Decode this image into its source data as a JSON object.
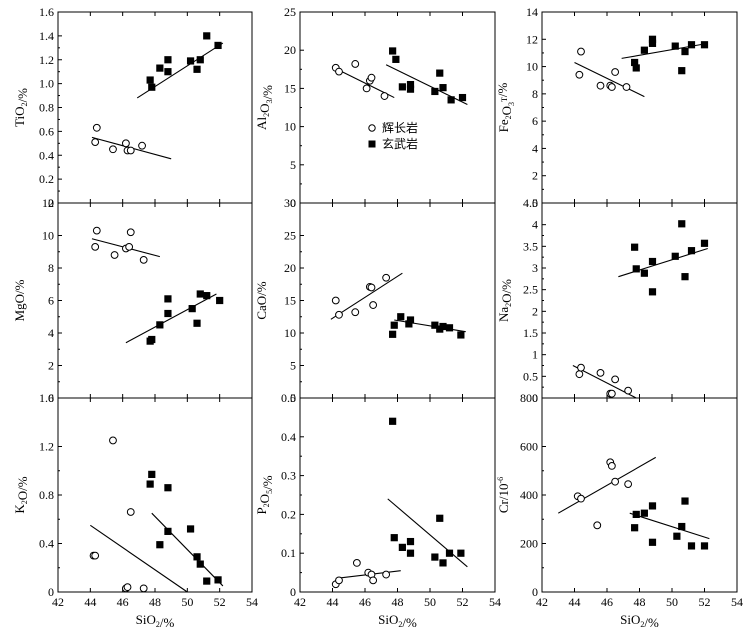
{
  "chart_data": [
    {
      "type": "scatter",
      "ylabel": "TiO2/%",
      "xlabel": "",
      "xlim": [
        42,
        54
      ],
      "ylim": [
        0,
        1.6
      ],
      "x_ticks": [
        "42",
        "44",
        "46",
        "48",
        "50",
        "52",
        "54"
      ],
      "y_ticks": [
        "0",
        "0.2",
        "0.4",
        "0.6",
        "0.8",
        "1.0",
        "1.2",
        "1.4",
        "1.6"
      ],
      "series": [
        {
          "name": "辉长岩",
          "marker": "open-circle",
          "x": [
            44.3,
            44.4,
            45.4,
            46.2,
            46.3,
            46.5,
            47.2
          ],
          "y": [
            0.51,
            0.63,
            0.45,
            0.5,
            0.44,
            0.44,
            0.48
          ]
        },
        {
          "name": "玄武岩",
          "marker": "filled-square",
          "x": [
            47.7,
            47.8,
            48.3,
            48.8,
            48.8,
            50.2,
            50.6,
            50.8,
            51.2,
            51.9
          ],
          "y": [
            1.03,
            0.97,
            1.13,
            1.1,
            1.2,
            1.19,
            1.12,
            1.2,
            1.4,
            1.32
          ]
        }
      ],
      "trendlines": [
        {
          "x": [
            44.1,
            49.0
          ],
          "y": [
            0.55,
            0.37
          ]
        },
        {
          "x": [
            46.9,
            52.2
          ],
          "y": [
            0.88,
            1.34
          ]
        }
      ]
    },
    {
      "type": "scatter",
      "ylabel": "Al2O3/%",
      "xlabel": "",
      "xlim": [
        42,
        54
      ],
      "ylim": [
        0,
        25
      ],
      "x_ticks": [
        "42",
        "44",
        "46",
        "48",
        "50",
        "52",
        "54"
      ],
      "y_ticks": [
        "0",
        "5",
        "10",
        "15",
        "20",
        "25"
      ],
      "series": [
        {
          "name": "辉长岩",
          "marker": "open-circle",
          "x": [
            44.2,
            44.4,
            45.4,
            46.1,
            46.3,
            46.4,
            47.2
          ],
          "y": [
            17.7,
            17.2,
            18.2,
            15.0,
            16.0,
            16.4,
            14.0
          ]
        },
        {
          "name": "玄武岩",
          "marker": "filled-square",
          "x": [
            47.7,
            47.9,
            48.3,
            48.8,
            48.8,
            50.3,
            50.6,
            50.8,
            51.3,
            52.0
          ],
          "y": [
            19.9,
            18.8,
            15.2,
            15.5,
            14.9,
            14.6,
            17.0,
            15.1,
            13.5,
            13.8
          ]
        }
      ],
      "trendlines": [
        {
          "x": [
            44.0,
            47.8
          ],
          "y": [
            17.8,
            13.8
          ]
        },
        {
          "x": [
            47.3,
            52.3
          ],
          "y": [
            18.1,
            12.9
          ]
        }
      ],
      "legend": {
        "placement": "center",
        "entries": [
          {
            "label": "辉长岩",
            "marker": "open-circle"
          },
          {
            "label": "玄武岩",
            "marker": "filled-square"
          }
        ]
      }
    },
    {
      "type": "scatter",
      "ylabel": "Fe2O3T/%",
      "xlabel": "",
      "xlim": [
        42,
        54
      ],
      "ylim": [
        0,
        14
      ],
      "x_ticks": [
        "42",
        "44",
        "46",
        "48",
        "50",
        "52",
        "54"
      ],
      "y_ticks": [
        "0",
        "2",
        "4",
        "6",
        "8",
        "10",
        "12",
        "14"
      ],
      "series": [
        {
          "name": "辉长岩",
          "marker": "open-circle",
          "x": [
            44.3,
            44.4,
            45.6,
            46.2,
            46.3,
            46.5,
            47.2
          ],
          "y": [
            9.4,
            11.1,
            8.6,
            8.6,
            8.5,
            9.6,
            8.5
          ]
        },
        {
          "name": "玄武岩",
          "marker": "filled-square",
          "x": [
            47.7,
            47.8,
            48.3,
            48.8,
            48.8,
            50.2,
            50.6,
            50.8,
            51.2,
            52.0
          ],
          "y": [
            10.3,
            9.9,
            11.2,
            11.7,
            12.0,
            11.5,
            9.7,
            11.1,
            11.6,
            11.6
          ]
        }
      ],
      "trendlines": [
        {
          "x": [
            44.0,
            48.3
          ],
          "y": [
            10.3,
            7.8
          ]
        },
        {
          "x": [
            46.9,
            52.2
          ],
          "y": [
            10.6,
            11.7
          ]
        }
      ]
    },
    {
      "type": "scatter",
      "ylabel": "MgO/%",
      "xlabel": "",
      "xlim": [
        42,
        54
      ],
      "ylim": [
        0,
        12
      ],
      "x_ticks": [
        "42",
        "44",
        "46",
        "48",
        "50",
        "52",
        "54"
      ],
      "y_ticks": [
        "0",
        "2",
        "4",
        "6",
        "8",
        "10",
        "12"
      ],
      "series": [
        {
          "name": "辉长岩",
          "marker": "open-circle",
          "x": [
            44.3,
            44.4,
            45.5,
            46.2,
            46.4,
            46.5,
            47.3
          ],
          "y": [
            9.3,
            10.3,
            8.8,
            9.2,
            9.3,
            10.2,
            8.5
          ]
        },
        {
          "name": "玄武岩",
          "marker": "filled-square",
          "x": [
            47.7,
            47.8,
            48.3,
            48.8,
            48.8,
            50.3,
            50.6,
            50.8,
            51.2,
            52.0
          ],
          "y": [
            3.5,
            3.6,
            4.5,
            5.2,
            6.1,
            5.5,
            4.6,
            6.4,
            6.3,
            6.0
          ]
        }
      ],
      "trendlines": [
        {
          "x": [
            44.1,
            48.3
          ],
          "y": [
            9.8,
            8.7
          ]
        },
        {
          "x": [
            46.2,
            51.8
          ],
          "y": [
            3.4,
            6.4
          ]
        }
      ]
    },
    {
      "type": "scatter",
      "ylabel": "CaO/%",
      "xlabel": "",
      "xlim": [
        42,
        54
      ],
      "ylim": [
        0,
        30
      ],
      "x_ticks": [
        "42",
        "44",
        "46",
        "48",
        "50",
        "52",
        "54"
      ],
      "y_ticks": [
        "0",
        "5",
        "10",
        "15",
        "20",
        "25",
        "30"
      ],
      "series": [
        {
          "name": "辉长岩",
          "marker": "open-circle",
          "x": [
            44.2,
            44.4,
            45.4,
            46.3,
            46.4,
            46.5,
            47.3
          ],
          "y": [
            15.0,
            12.8,
            13.2,
            17.1,
            17.0,
            14.3,
            18.5
          ]
        },
        {
          "name": "玄武岩",
          "marker": "filled-square",
          "x": [
            47.7,
            47.8,
            48.2,
            48.7,
            48.8,
            50.3,
            50.6,
            50.8,
            51.2,
            51.9
          ],
          "y": [
            9.8,
            11.2,
            12.5,
            11.4,
            12.0,
            11.2,
            10.6,
            11.0,
            10.8,
            9.7
          ]
        }
      ],
      "trendlines": [
        {
          "x": [
            43.9,
            48.3
          ],
          "y": [
            12.1,
            19.2
          ]
        },
        {
          "x": [
            47.8,
            52.2
          ],
          "y": [
            12.0,
            10.2
          ]
        }
      ]
    },
    {
      "type": "scatter",
      "ylabel": "Na2O/%",
      "xlabel": "",
      "xlim": [
        42,
        54
      ],
      "ylim": [
        0,
        4.5
      ],
      "x_ticks": [
        "42",
        "44",
        "46",
        "48",
        "50",
        "52",
        "54"
      ],
      "y_ticks": [
        "0",
        "0.5",
        "1",
        "1.5",
        "2",
        "2.5",
        "3",
        "3.5",
        "4",
        "4.5"
      ],
      "series": [
        {
          "name": "辉长岩",
          "marker": "open-circle",
          "x": [
            44.3,
            44.4,
            45.6,
            46.2,
            46.3,
            46.5,
            47.3
          ],
          "y": [
            0.55,
            0.7,
            0.58,
            0.1,
            0.1,
            0.43,
            0.17
          ]
        },
        {
          "name": "玄武岩",
          "marker": "filled-square",
          "x": [
            47.7,
            47.8,
            48.3,
            48.8,
            48.8,
            50.2,
            50.6,
            50.8,
            51.2,
            52.0
          ],
          "y": [
            3.48,
            2.98,
            2.88,
            3.15,
            2.45,
            3.27,
            4.02,
            2.8,
            3.4,
            3.57
          ]
        }
      ],
      "trendlines": [
        {
          "x": [
            43.9,
            47.8
          ],
          "y": [
            0.75,
            0.0
          ]
        },
        {
          "x": [
            46.7,
            52.2
          ],
          "y": [
            2.8,
            3.45
          ]
        }
      ]
    },
    {
      "type": "scatter",
      "ylabel": "K2O/%",
      "xlabel": "SiO2/%",
      "xlim": [
        42,
        54
      ],
      "ylim": [
        0,
        1.6
      ],
      "x_ticks": [
        "42",
        "44",
        "46",
        "48",
        "50",
        "52",
        "54"
      ],
      "y_ticks": [
        "0",
        "0.4",
        "0.8",
        "1.2",
        "1.6"
      ],
      "series": [
        {
          "name": "辉长岩",
          "marker": "open-circle",
          "x": [
            44.2,
            44.3,
            45.4,
            46.2,
            46.3,
            46.5,
            47.3
          ],
          "y": [
            0.3,
            0.3,
            1.25,
            0.03,
            0.04,
            0.66,
            0.03
          ]
        },
        {
          "name": "玄武岩",
          "marker": "filled-square",
          "x": [
            47.7,
            47.8,
            48.3,
            48.8,
            48.8,
            50.2,
            50.6,
            50.8,
            51.2,
            51.9
          ],
          "y": [
            0.89,
            0.97,
            0.39,
            0.86,
            0.5,
            0.52,
            0.29,
            0.23,
            0.09,
            0.1
          ]
        }
      ],
      "trendlines": [
        {
          "x": [
            44.0,
            50.0
          ],
          "y": [
            0.55,
            0.0
          ]
        },
        {
          "x": [
            47.8,
            52.2
          ],
          "y": [
            0.65,
            0.05
          ]
        }
      ]
    },
    {
      "type": "scatter",
      "ylabel": "P2O5/%",
      "xlabel": "SiO2/%",
      "xlim": [
        42,
        54
      ],
      "ylim": [
        0,
        0.5
      ],
      "x_ticks": [
        "42",
        "44",
        "46",
        "48",
        "50",
        "52",
        "54"
      ],
      "y_ticks": [
        "0",
        "0.1",
        "0.2",
        "0.3",
        "0.4",
        "0.5"
      ],
      "series": [
        {
          "name": "辉长岩",
          "marker": "open-circle",
          "x": [
            44.2,
            44.4,
            45.5,
            46.2,
            46.4,
            46.5,
            47.3
          ],
          "y": [
            0.02,
            0.03,
            0.075,
            0.05,
            0.045,
            0.03,
            0.045
          ]
        },
        {
          "name": "玄武岩",
          "marker": "filled-square",
          "x": [
            47.7,
            47.8,
            48.3,
            48.8,
            48.8,
            50.3,
            50.6,
            50.8,
            51.2,
            51.9
          ],
          "y": [
            0.44,
            0.14,
            0.115,
            0.13,
            0.1,
            0.09,
            0.19,
            0.075,
            0.1,
            0.1
          ]
        }
      ],
      "trendlines": [
        {
          "x": [
            44.2,
            48.2
          ],
          "y": [
            0.035,
            0.055
          ]
        },
        {
          "x": [
            47.4,
            52.3
          ],
          "y": [
            0.24,
            0.065
          ]
        }
      ]
    },
    {
      "type": "scatter",
      "ylabel": "Cr/10-6",
      "xlabel": "SiO2/%",
      "xlim": [
        42,
        54
      ],
      "ylim": [
        0,
        800
      ],
      "x_ticks": [
        "42",
        "44",
        "46",
        "48",
        "50",
        "52",
        "54"
      ],
      "y_ticks": [
        "0",
        "200",
        "400",
        "600",
        "800"
      ],
      "series": [
        {
          "name": "辉长岩",
          "marker": "open-circle",
          "x": [
            44.2,
            44.4,
            45.4,
            46.2,
            46.3,
            46.5,
            47.3
          ],
          "y": [
            395,
            385,
            275,
            535,
            520,
            455,
            445
          ]
        },
        {
          "name": "玄武岩",
          "marker": "filled-square",
          "x": [
            47.7,
            47.8,
            48.3,
            48.8,
            48.8,
            50.3,
            50.6,
            50.8,
            51.2,
            52.0
          ],
          "y": [
            265,
            320,
            325,
            205,
            355,
            230,
            270,
            375,
            190,
            190
          ]
        }
      ],
      "trendlines": [
        {
          "x": [
            43.0,
            49.0
          ],
          "y": [
            325,
            555
          ]
        },
        {
          "x": [
            47.4,
            52.3
          ],
          "y": [
            325,
            220
          ]
        }
      ]
    }
  ]
}
